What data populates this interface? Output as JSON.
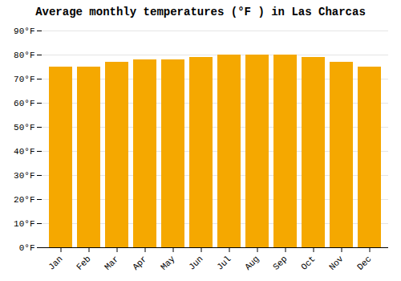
{
  "chart_data": {
    "type": "bar",
    "title": "Average monthly temperatures (°F ) in Las Charcas",
    "categories": [
      "Jan",
      "Feb",
      "Mar",
      "Apr",
      "May",
      "Jun",
      "Jul",
      "Aug",
      "Sep",
      "Oct",
      "Nov",
      "Dec"
    ],
    "values": [
      75,
      75,
      77,
      78,
      78,
      79,
      80,
      80,
      80,
      79,
      77,
      75
    ],
    "color": "#F5A800",
    "ylim": [
      0,
      90
    ],
    "yticks": [
      {
        "value": 0,
        "label": "0°F"
      },
      {
        "value": 10,
        "label": "10°F"
      },
      {
        "value": 20,
        "label": "20°F"
      },
      {
        "value": 30,
        "label": "30°F"
      },
      {
        "value": 40,
        "label": "40°F"
      },
      {
        "value": 50,
        "label": "50°F"
      },
      {
        "value": 60,
        "label": "60°F"
      },
      {
        "value": 70,
        "label": "70°F"
      },
      {
        "value": 80,
        "label": "80°F"
      },
      {
        "value": 90,
        "label": "90°F"
      }
    ],
    "grid": true
  }
}
